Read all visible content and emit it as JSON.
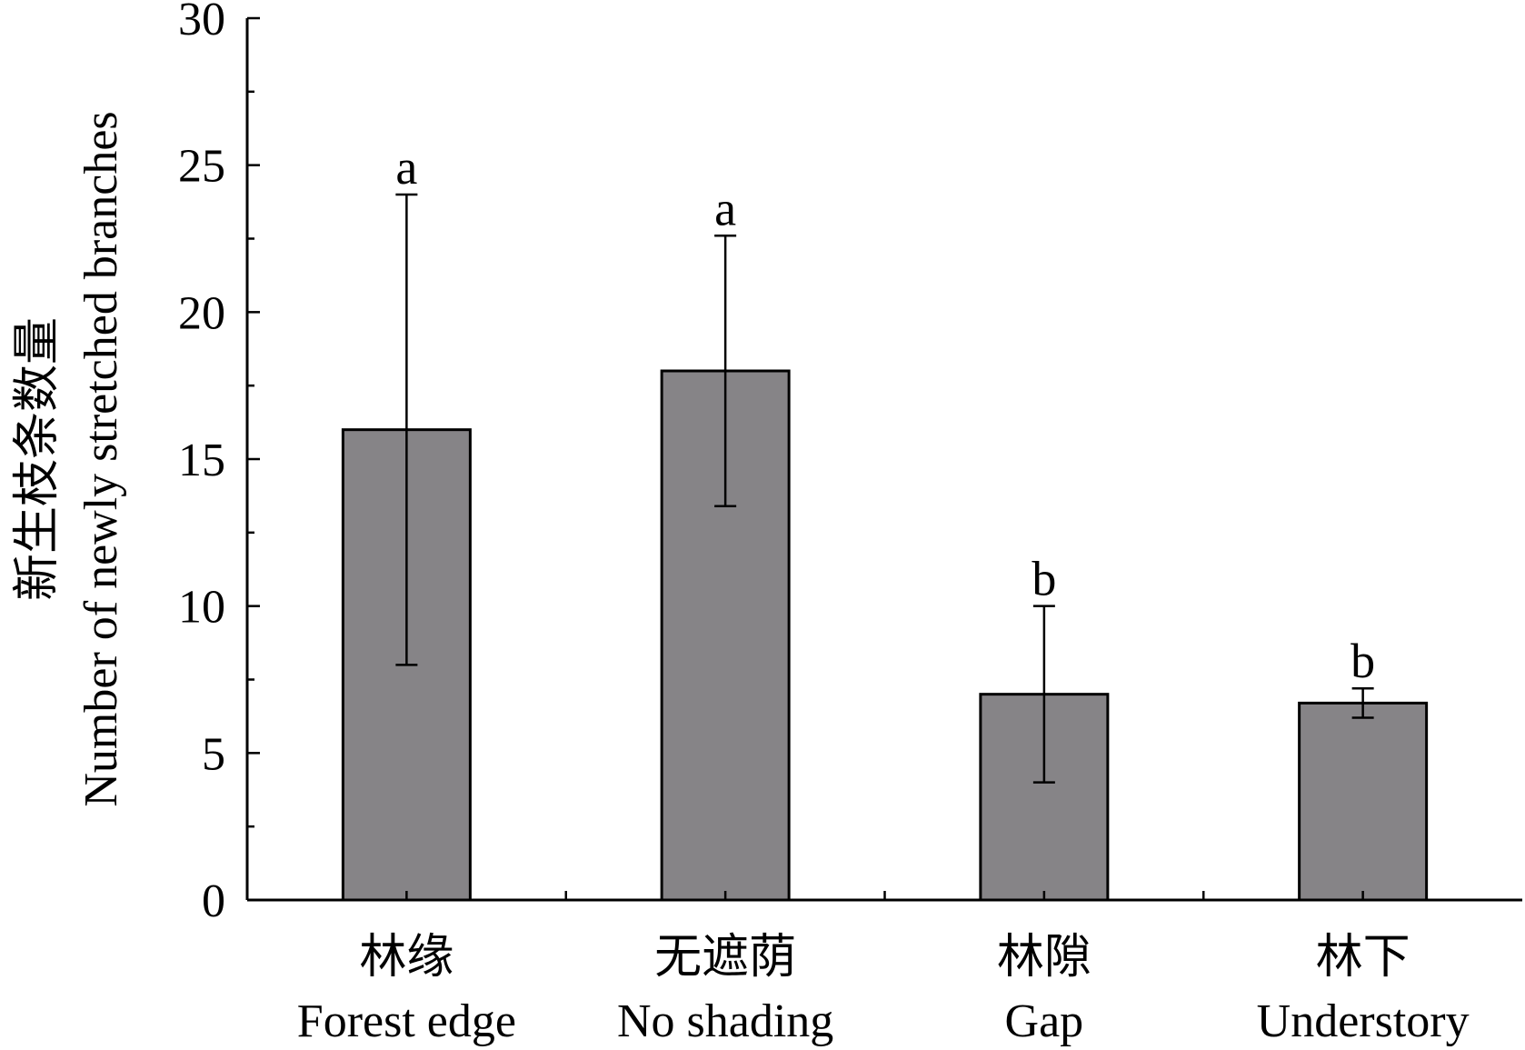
{
  "chart_data": {
    "type": "bar",
    "categories": [
      {
        "zh": "林缘",
        "en": "Forest edge"
      },
      {
        "zh": "无遮荫",
        "en": "No shading"
      },
      {
        "zh": "林隙",
        "en": "Gap"
      },
      {
        "zh": "林下",
        "en": "Understory"
      }
    ],
    "values": [
      16,
      18,
      7,
      6.7
    ],
    "error_upper": [
      24,
      22.6,
      10,
      7.2
    ],
    "error_lower": [
      8,
      13.4,
      4,
      6.2
    ],
    "significance": [
      "a",
      "a",
      "b",
      "b"
    ],
    "ylabel_zh": "新生枝条数量",
    "ylabel_en": "Number of newly stretched branches",
    "ylim": [
      0,
      30
    ],
    "yticks": [
      0,
      5,
      10,
      15,
      20,
      25,
      30
    ],
    "bar_color": "#868487",
    "grid": false
  }
}
